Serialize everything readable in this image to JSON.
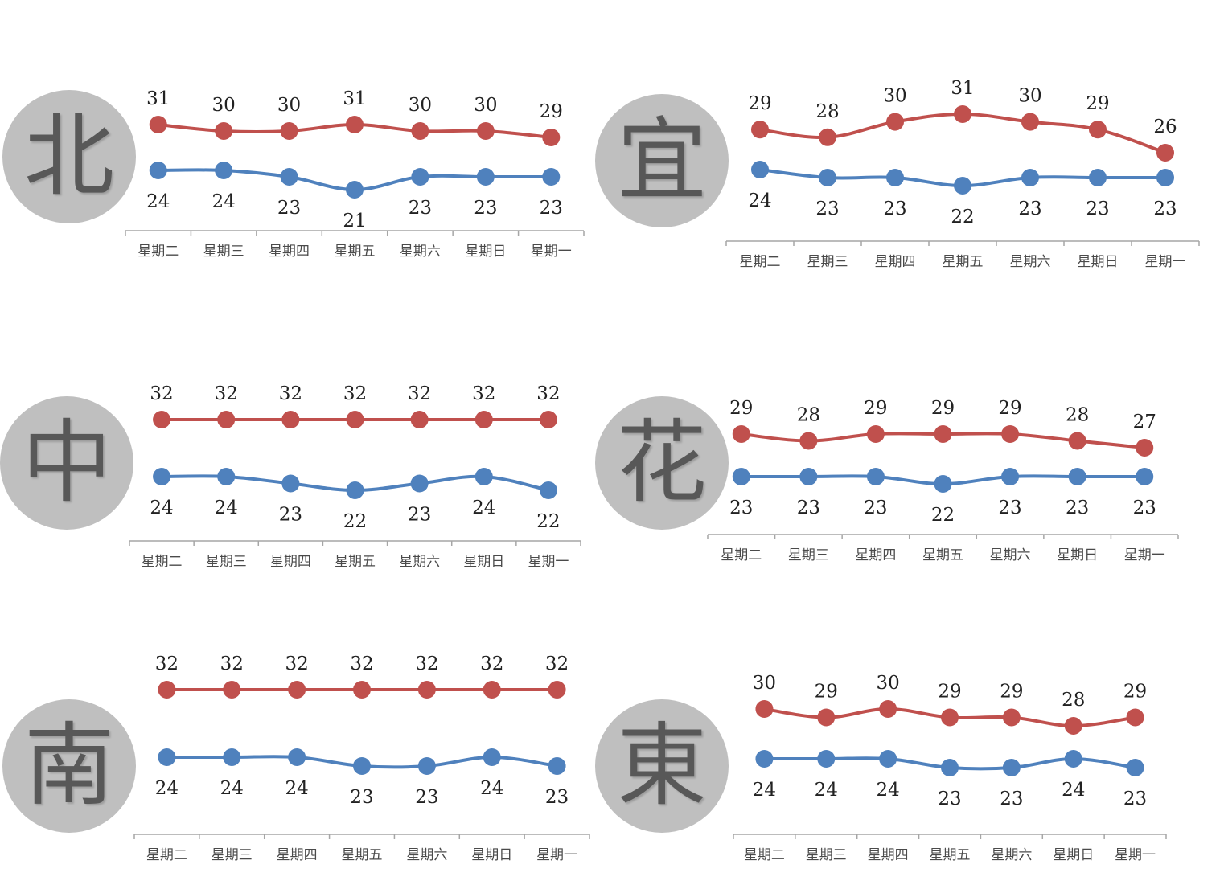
{
  "colors": {
    "high": "#c0504d",
    "low": "#4f81bd",
    "axis": "#a6a6a6",
    "badge": "#bfbfbf"
  },
  "chart_data": [
    {
      "type": "line",
      "region": "北",
      "categories": [
        "星期二",
        "星期三",
        "星期四",
        "星期五",
        "星期六",
        "星期日",
        "星期一"
      ],
      "series": [
        {
          "values": [
            31,
            30,
            30,
            31,
            30,
            30,
            29
          ]
        },
        {
          "values": [
            24,
            24,
            23,
            21,
            23,
            23,
            23
          ]
        }
      ]
    },
    {
      "type": "line",
      "region": "宜",
      "categories": [
        "星期二",
        "星期三",
        "星期四",
        "星期五",
        "星期六",
        "星期日",
        "星期一"
      ],
      "series": [
        {
          "values": [
            29,
            28,
            30,
            31,
            30,
            29,
            26
          ]
        },
        {
          "values": [
            24,
            23,
            23,
            22,
            23,
            23,
            23
          ]
        }
      ]
    },
    {
      "type": "line",
      "region": "中",
      "categories": [
        "星期二",
        "星期三",
        "星期四",
        "星期五",
        "星期六",
        "星期日",
        "星期一"
      ],
      "series": [
        {
          "values": [
            32,
            32,
            32,
            32,
            32,
            32,
            32
          ]
        },
        {
          "values": [
            24,
            24,
            23,
            22,
            23,
            24,
            22
          ]
        }
      ]
    },
    {
      "type": "line",
      "region": "花",
      "categories": [
        "星期二",
        "星期三",
        "星期四",
        "星期五",
        "星期六",
        "星期日",
        "星期一"
      ],
      "series": [
        {
          "values": [
            29,
            28,
            29,
            29,
            29,
            28,
            27
          ]
        },
        {
          "values": [
            23,
            23,
            23,
            22,
            23,
            23,
            23
          ]
        }
      ]
    },
    {
      "type": "line",
      "region": "南",
      "categories": [
        "星期二",
        "星期三",
        "星期四",
        "星期五",
        "星期六",
        "星期日",
        "星期一"
      ],
      "series": [
        {
          "values": [
            32,
            32,
            32,
            32,
            32,
            32,
            32
          ]
        },
        {
          "values": [
            24,
            24,
            24,
            23,
            23,
            24,
            23
          ]
        }
      ]
    },
    {
      "type": "line",
      "region": "東",
      "categories": [
        "星期二",
        "星期三",
        "星期四",
        "星期五",
        "星期六",
        "星期日",
        "星期一"
      ],
      "series": [
        {
          "values": [
            30,
            29,
            30,
            29,
            29,
            28,
            29
          ]
        },
        {
          "values": [
            24,
            24,
            24,
            23,
            23,
            24,
            23
          ]
        }
      ]
    }
  ]
}
